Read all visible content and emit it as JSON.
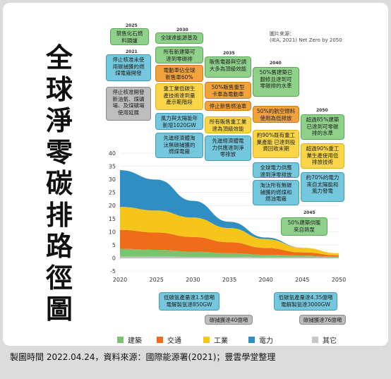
{
  "title_vertical": "全\n球\n淨\n零\n碳\n排\n路\n徑\n圖",
  "source_note": "圖片來源：\n(IEA, 2021) Net Zero by 2050",
  "footer": "製圖時間 2022.04.24，資料來源：國際能源署(2021)；豐雲學堂整理",
  "colors": {
    "buildings": "#7cc36e",
    "transport": "#ee6c1a",
    "industry": "#f5c51c",
    "electricity": "#2f8ec2",
    "other": "#c7c7c7"
  },
  "year_tags": {
    "y2025": "2025",
    "y2021": "2021",
    "y2030": "2030",
    "y2035": "2035",
    "y2040": "2040",
    "y2050": "2050",
    "y2045": "2045"
  },
  "boxes": {
    "b2025": "禁售化石燃\n料鍋爐",
    "b2021_1": "停止核准未使\n用碳捕獲的燃\n煤電廠開發",
    "b2021_2": "停止核准開發\n新油氣、煤礦\n場、及煤礦場\n使用延展",
    "b2030_1": "全球達能源普及",
    "b2030_2": "所有新建築可\n達到零碳排",
    "b2030_3": "電動車佔全球\n新售車60%",
    "b2030_4": "重工業低碳生\n產技術達到量\n產示範階段",
    "b2030_5": "風力與太陽能年\n新增1020GW",
    "b2030_6": "先進經濟體淘\n汰無碳捕獲的\n燃煤電廠",
    "b2035_1": "販售電器與空調\n大多為頂級效能",
    "b2035_2": "50%販售重型\n卡車為電動車",
    "b2035_3": "停止新售燃油車",
    "b2035_4": "所有販售重工業\n達為頂級效能",
    "b2035_5": "先進經濟體電\n力供應達到淨\n零排放",
    "b2040_1": "50%舊建築已\n翻修且達到可\n零碳排的水準",
    "b2040_2": "50%的航空燃料\n使用為低排放",
    "b2040_3": "約90%既有重工\n業產能 已達到投\n資回收末期",
    "b2040_4": "全球電力供應\n達到淨零排放",
    "b2040_5": "淘汰所有無碳\n捕獲的燃煤和\n燃油電廠",
    "b2050_1": "超過85%建築\n已達到可零碳\n排的水準",
    "b2050_2": "超過90%重工\n業生產使用低\n排放技術",
    "b2050_3": "約70%的電力\n來自太陽能和\n風力發電",
    "b2045": "50%建築供暖\n來自熱泵",
    "bot_1": "低碳氫產量達1.5億噸\n電解製氫達850GW",
    "bot_2": "碳捕獲達40億噸",
    "bot_3": "低碳氫產量達4.35億噸\n電解製氫達3000GW",
    "bot_4": "碳捕獲達76億噸"
  },
  "legend": [
    "建築",
    "交通",
    "工業",
    "電力",
    "其它"
  ],
  "chart_data": {
    "type": "area",
    "x": [
      2020,
      2025,
      2030,
      2035,
      2040,
      2045,
      2050
    ],
    "xlim": [
      2020,
      2050
    ],
    "ylim": [
      -5,
      40
    ],
    "yticks": [
      -5,
      0,
      5,
      10,
      15,
      20,
      25,
      30,
      35,
      40
    ],
    "xticks": [
      2020,
      2025,
      2030,
      2035,
      2040,
      2045,
      2050
    ],
    "series": [
      {
        "name": "其它",
        "values": [
          0.5,
          0.5,
          0.4,
          0.4,
          0.3,
          0.3,
          0.2
        ]
      },
      {
        "name": "建築",
        "values": [
          3.0,
          2.6,
          2.0,
          1.4,
          0.9,
          0.6,
          0.3
        ]
      },
      {
        "name": "交通",
        "values": [
          7.2,
          6.6,
          5.6,
          4.2,
          2.6,
          1.2,
          0.5
        ]
      },
      {
        "name": "工業",
        "values": [
          8.8,
          8.4,
          7.4,
          5.4,
          3.4,
          1.8,
          0.8
        ]
      },
      {
        "name": "電力",
        "values": [
          14.0,
          11.8,
          6.4,
          2.4,
          0.6,
          0.0,
          -0.3
        ]
      }
    ]
  }
}
